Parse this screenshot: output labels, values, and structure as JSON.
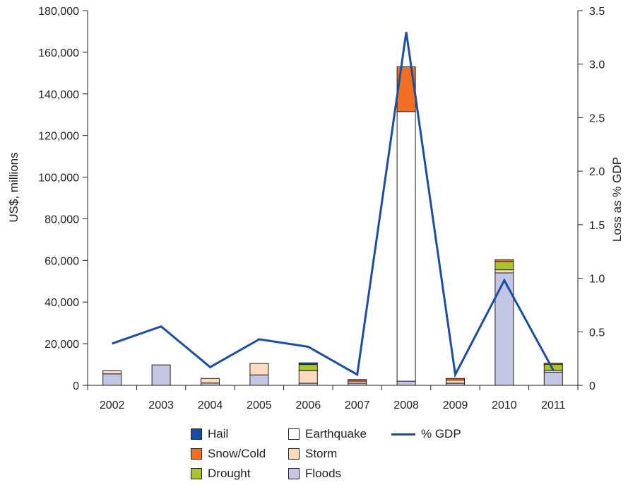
{
  "chart_data": {
    "type": "bar",
    "stacked": true,
    "categories": [
      "2002",
      "2003",
      "2004",
      "2005",
      "2006",
      "2007",
      "2008",
      "2009",
      "2010",
      "2011"
    ],
    "series": [
      {
        "name": "Floods",
        "color": "#c3c6e4",
        "values": [
          5500,
          9800,
          1100,
          5000,
          1000,
          1000,
          2000,
          1000,
          54000,
          6300
        ]
      },
      {
        "name": "Earthquake",
        "color": "#ffffff",
        "values": [
          0,
          0,
          0,
          0,
          0,
          0,
          129500,
          0,
          0,
          0
        ]
      },
      {
        "name": "Storm",
        "color": "#fdd9bd",
        "values": [
          1500,
          0,
          2200,
          5500,
          6000,
          1000,
          0,
          1500,
          1500,
          800
        ]
      },
      {
        "name": "Drought",
        "color": "#a8c62b",
        "values": [
          0,
          0,
          0,
          0,
          3000,
          0,
          0,
          0,
          4000,
          3000
        ]
      },
      {
        "name": "Snow/Cold",
        "color": "#f26f21",
        "values": [
          0,
          0,
          0,
          0,
          0,
          800,
          21500,
          800,
          800,
          500
        ]
      },
      {
        "name": "Hail",
        "color": "#1a4ea2",
        "values": [
          0,
          0,
          0,
          0,
          800,
          0,
          0,
          0,
          0,
          0
        ]
      }
    ],
    "line_series": {
      "name": "% GDP",
      "color": "#1a4ea2",
      "values": [
        0.39,
        0.55,
        0.17,
        0.43,
        0.36,
        0.1,
        3.3,
        0.1,
        0.98,
        0.14
      ]
    },
    "ylabel": "US$, millions",
    "y2label": "Loss as % GDP",
    "ylim": [
      0,
      180000
    ],
    "y2lim": [
      0,
      3.5
    ],
    "yticks": [
      "0",
      "20,000",
      "40,000",
      "60,000",
      "80,000",
      "100,000",
      "120,000",
      "140,000",
      "160,000",
      "180,000"
    ],
    "y2ticks": [
      "0",
      "0.5",
      "1.0",
      "1.5",
      "2.0",
      "2.5",
      "3.0",
      "3.5"
    ],
    "legend": {
      "col1": [
        "Hail",
        "Snow/Cold",
        "Drought"
      ],
      "col2": [
        "Earthquake",
        "Storm",
        "Floods"
      ],
      "col3": [
        "% GDP"
      ]
    },
    "legend_placement": "bottom",
    "grid": false
  }
}
